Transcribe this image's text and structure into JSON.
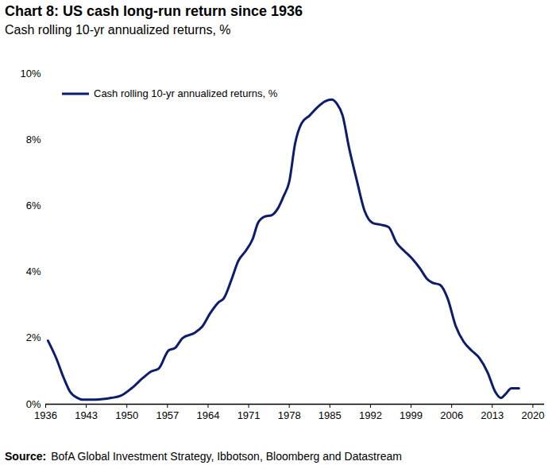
{
  "chart_data": {
    "type": "line",
    "title": "Chart 8: US cash long-run return since 1936",
    "subtitle": "Cash rolling 10-yr annualized returns, %",
    "source": "Source: BofA Global Investment Strategy, Ibbotson, Bloomberg and Datastream",
    "x": [
      1936.4,
      1937.8,
      1939.1,
      1940.2,
      1941.5,
      1942.3,
      1944.6,
      1947.3,
      1949.0,
      1950.8,
      1952.8,
      1954.2,
      1955.5,
      1957.2,
      1958.3,
      1959.6,
      1961.7,
      1963.0,
      1964.4,
      1965.8,
      1966.7,
      1968.1,
      1969.2,
      1970.5,
      1971.7,
      1972.6,
      1973.7,
      1975.0,
      1976.0,
      1977.1,
      1978.0,
      1979.0,
      1980.1,
      1981.5,
      1982.8,
      1984.2,
      1985.3,
      1986.2,
      1987.2,
      1988.3,
      1989.6,
      1991.0,
      1992.4,
      1993.7,
      1995.1,
      1996.5,
      1997.8,
      1999.2,
      2000.6,
      2001.7,
      2002.6,
      2004.0,
      2005.3,
      2006.7,
      2008.1,
      2009.4,
      2010.8,
      2012.2,
      2013.5,
      2014.5,
      2015.3,
      2016.3,
      2017.6
    ],
    "series": [
      {
        "name": "Cash rolling 10-yr annualized returns, %",
        "color": "#0c1c6e",
        "values": [
          1.92,
          1.4,
          0.8,
          0.38,
          0.19,
          0.14,
          0.14,
          0.19,
          0.26,
          0.48,
          0.8,
          0.99,
          1.08,
          1.63,
          1.7,
          2.0,
          2.16,
          2.35,
          2.76,
          3.08,
          3.2,
          3.8,
          4.33,
          4.64,
          5.0,
          5.48,
          5.67,
          5.72,
          5.91,
          6.32,
          6.73,
          7.88,
          8.49,
          8.73,
          8.97,
          9.16,
          9.21,
          9.09,
          8.73,
          7.76,
          6.8,
          5.84,
          5.48,
          5.43,
          5.36,
          4.88,
          4.64,
          4.4,
          4.09,
          3.8,
          3.68,
          3.61,
          3.2,
          2.36,
          1.88,
          1.63,
          1.39,
          0.96,
          0.38,
          0.19,
          0.31,
          0.48,
          0.48
        ]
      }
    ],
    "xlim": [
      1936,
      2022
    ],
    "xticks": [
      1936,
      1943,
      1950,
      1957,
      1964,
      1971,
      1978,
      1985,
      1992,
      1999,
      2006,
      2013,
      2020
    ],
    "ylim": [
      0,
      10
    ],
    "yticks": [
      {
        "value": 0,
        "label": "0%"
      },
      {
        "value": 2,
        "label": "2%"
      },
      {
        "value": 4,
        "label": "4%"
      },
      {
        "value": 6,
        "label": "6%"
      },
      {
        "value": 8,
        "label": "8%"
      },
      {
        "value": 10,
        "label": "10%"
      }
    ],
    "grid": false,
    "legend": "top-left"
  }
}
